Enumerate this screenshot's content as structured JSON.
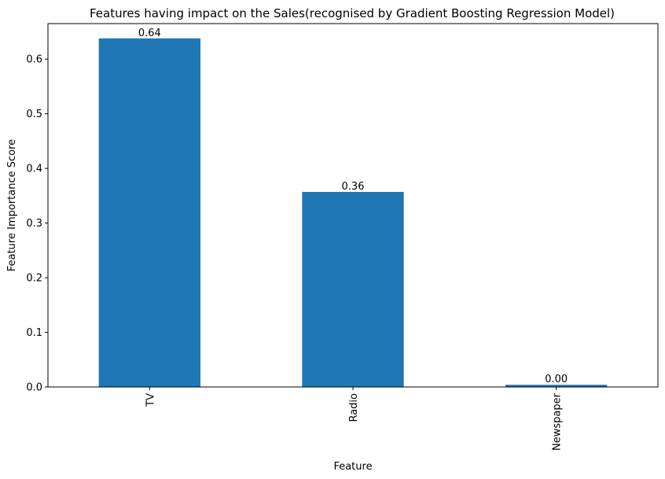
{
  "chart_data": {
    "type": "bar",
    "title": "Features having impact on the Sales(recognised by Gradient Boosting Regression Model)",
    "xlabel": "Feature",
    "ylabel": "Feature Importance Score",
    "categories": [
      "TV",
      "Radio",
      "Newspaper"
    ],
    "values": [
      0.638,
      0.357,
      0.004
    ],
    "value_labels": [
      "0.64",
      "0.36",
      "0.00"
    ],
    "ylim": [
      0,
      0.665
    ],
    "yticks": [
      0.0,
      0.1,
      0.2,
      0.3,
      0.4,
      0.5,
      0.6
    ],
    "ytick_labels": [
      "0.0",
      "0.1",
      "0.2",
      "0.3",
      "0.4",
      "0.5",
      "0.6"
    ],
    "grid": false,
    "bar_color": "#1f77b4",
    "x_tick_rotation": "vertical"
  }
}
